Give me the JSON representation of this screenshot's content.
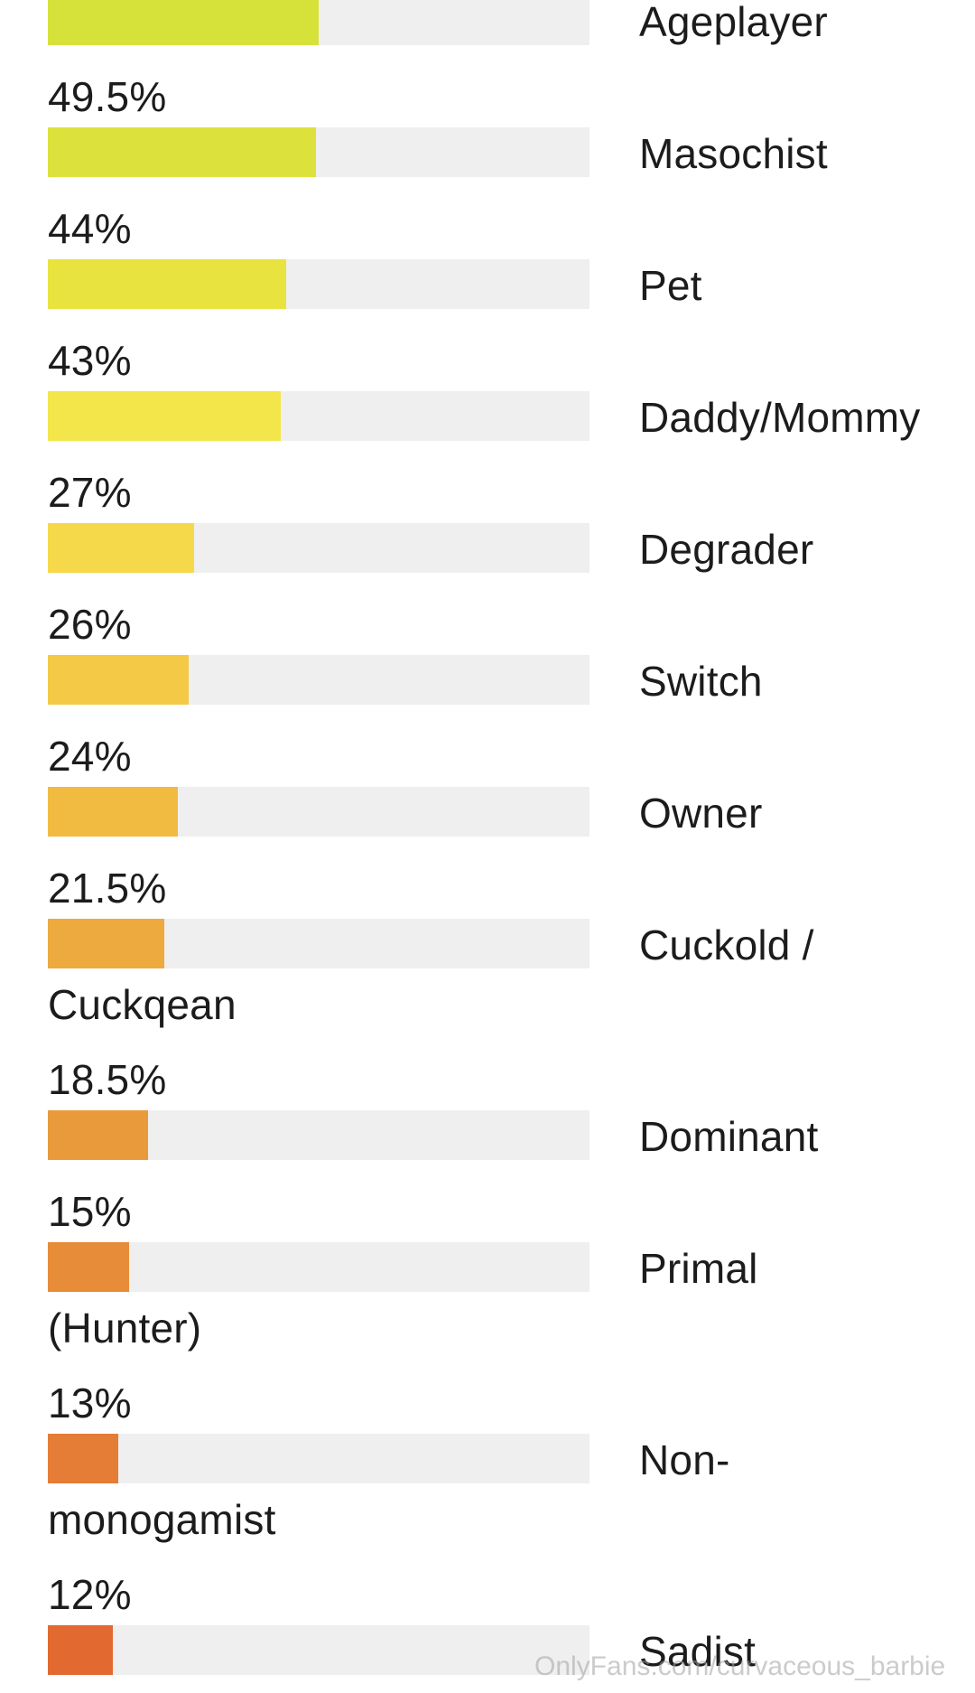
{
  "chart_data": {
    "type": "bar",
    "orientation": "horizontal",
    "max_value": 100,
    "items": [
      {
        "pct_label": "",
        "value": 50,
        "label": "Ageplayer",
        "label_cont": "",
        "color": "#d6e13a"
      },
      {
        "pct_label": "49.5%",
        "value": 49.5,
        "label": "Masochist",
        "label_cont": "",
        "color": "#dde13c"
      },
      {
        "pct_label": "44%",
        "value": 44,
        "label": "Pet",
        "label_cont": "",
        "color": "#e8e33f"
      },
      {
        "pct_label": "43%",
        "value": 43,
        "label": "Daddy/Mommy",
        "label_cont": "",
        "color": "#f3e64a"
      },
      {
        "pct_label": "27%",
        "value": 27,
        "label": "Degrader",
        "label_cont": "",
        "color": "#f6d94a"
      },
      {
        "pct_label": "26%",
        "value": 26,
        "label": "Switch",
        "label_cont": "",
        "color": "#f4c945"
      },
      {
        "pct_label": "24%",
        "value": 24,
        "label": "Owner",
        "label_cont": "",
        "color": "#f1bb42"
      },
      {
        "pct_label": "21.5%",
        "value": 21.5,
        "label": "Cuckold /",
        "label_cont": "Cuckqean",
        "color": "#edaa3f"
      },
      {
        "pct_label": "18.5%",
        "value": 18.5,
        "label": "Dominant",
        "label_cont": "",
        "color": "#e99b3b"
      },
      {
        "pct_label": "15%",
        "value": 15,
        "label": "Primal",
        "label_cont": "(Hunter)",
        "color": "#e78c39"
      },
      {
        "pct_label": "13%",
        "value": 13,
        "label": "Non-",
        "label_cont": "monogamist",
        "color": "#e57d36"
      },
      {
        "pct_label": "12%",
        "value": 12,
        "label": "Sadist",
        "label_cont": "",
        "color": "#e26a30"
      }
    ]
  },
  "watermark": "OnlyFans.com/curvaceous_barbie"
}
